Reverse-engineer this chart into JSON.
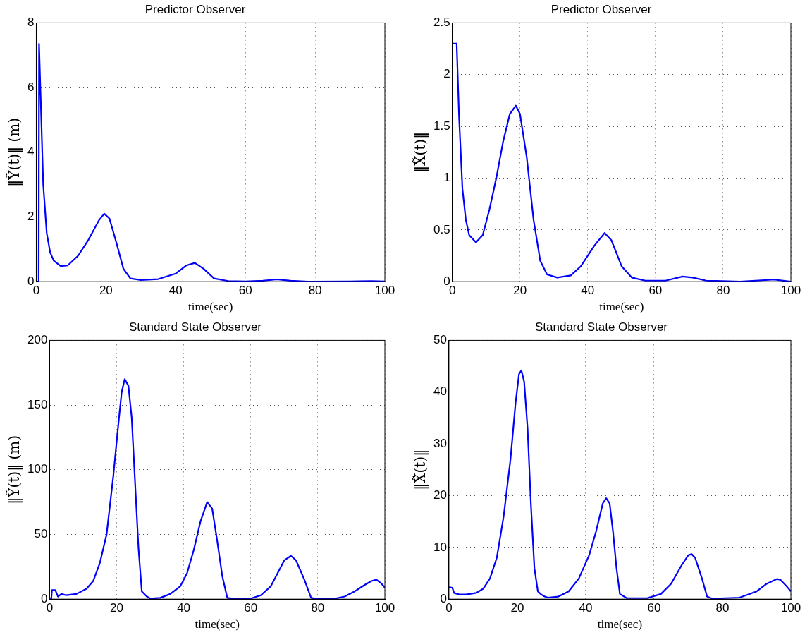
{
  "chart_data": [
    {
      "type": "line",
      "title": "Predictor Observer",
      "xlabel": "time(sec)",
      "ylabel": "‖Ỹ(t)‖ (m)",
      "xlim": [
        0,
        100
      ],
      "xticks": [
        0,
        20,
        40,
        60,
        80,
        100
      ],
      "ylim": [
        0,
        8
      ],
      "yticks": [
        0,
        2,
        4,
        6,
        8
      ],
      "grid": true,
      "marker": "none",
      "line_style": "solid",
      "series": [
        {
          "color": "#0000ff",
          "x": [
            0,
            0.7,
            0.8,
            2,
            3,
            4,
            5,
            7,
            9,
            12,
            15,
            18,
            19.5,
            21,
            23,
            25,
            27,
            30,
            35,
            40,
            43,
            45.5,
            48,
            51,
            55,
            60,
            65,
            69,
            73,
            78,
            90,
            96,
            100
          ],
          "values": [
            0,
            0,
            7.35,
            3,
            1.5,
            0.9,
            0.65,
            0.48,
            0.5,
            0.8,
            1.3,
            1.9,
            2.1,
            1.95,
            1.2,
            0.4,
            0.1,
            0.05,
            0.08,
            0.25,
            0.5,
            0.58,
            0.4,
            0.1,
            0.02,
            0.01,
            0.03,
            0.07,
            0.03,
            0,
            0.01,
            0.02,
            0.01
          ]
        }
      ]
    },
    {
      "type": "line",
      "title": "Predictor Observer",
      "xlabel": "time(sec)",
      "ylabel": "‖X̃(t)‖",
      "xlim": [
        0,
        100
      ],
      "xticks": [
        0,
        20,
        40,
        60,
        80,
        100
      ],
      "ylim": [
        0,
        2.5
      ],
      "yticks": [
        0,
        0.5,
        1,
        1.5,
        2,
        2.5
      ],
      "grid": true,
      "marker": "none",
      "line_style": "solid",
      "series": [
        {
          "color": "#0000ff",
          "x": [
            0,
            1.3,
            2,
            3,
            4,
            5,
            7,
            9,
            11,
            13,
            15,
            17,
            18.8,
            20,
            22,
            24,
            26,
            28,
            31,
            35,
            38,
            42,
            45,
            47,
            50,
            53,
            57,
            63,
            68,
            71,
            75,
            85,
            95,
            100
          ],
          "values": [
            2.3,
            2.3,
            1.6,
            0.9,
            0.6,
            0.45,
            0.38,
            0.45,
            0.7,
            1.0,
            1.35,
            1.62,
            1.7,
            1.62,
            1.2,
            0.6,
            0.2,
            0.07,
            0.04,
            0.06,
            0.15,
            0.35,
            0.47,
            0.4,
            0.15,
            0.04,
            0.01,
            0.01,
            0.05,
            0.04,
            0.01,
            0,
            0.02,
            0
          ]
        }
      ]
    },
    {
      "type": "line",
      "title": "Standard State Observer",
      "xlabel": "time(sec)",
      "ylabel": "‖Ỹ(t)‖ (m)",
      "xlim": [
        0,
        100
      ],
      "xticks": [
        0,
        20,
        40,
        60,
        80,
        100
      ],
      "ylim": [
        0,
        200
      ],
      "yticks": [
        0,
        50,
        100,
        150,
        200
      ],
      "grid": true,
      "marker": "none",
      "line_style": "solid",
      "series": [
        {
          "color": "#0000ff",
          "x": [
            0,
            0.5,
            0.7,
            1.7,
            2.5,
            3.5,
            5,
            8,
            11,
            13,
            15,
            17,
            19,
            20.5,
            21.5,
            22.4,
            23.5,
            24.5,
            25.5,
            26.5,
            27.5,
            29,
            30,
            33,
            36,
            39,
            41,
            43,
            45,
            47,
            48.5,
            50,
            51.5,
            53,
            56,
            60,
            63,
            66,
            68,
            70,
            72,
            73.5,
            76,
            78,
            80,
            85,
            88,
            91,
            94,
            96,
            97.5,
            99,
            100
          ],
          "values": [
            0,
            0,
            7,
            7,
            2,
            4,
            3,
            4,
            8,
            14,
            28,
            50,
            95,
            135,
            160,
            170,
            165,
            140,
            90,
            40,
            6,
            2,
            0.5,
            1,
            4,
            10,
            20,
            38,
            60,
            75,
            70,
            45,
            18,
            1,
            0,
            0.5,
            3,
            10,
            20,
            30,
            33.5,
            30,
            15,
            1,
            0,
            0.3,
            2,
            6,
            11,
            14,
            15,
            12,
            9
          ]
        }
      ]
    },
    {
      "type": "line",
      "title": "Standard State Observer",
      "xlabel": "time(sec)",
      "ylabel": "‖X̃(t)‖",
      "xlim": [
        0,
        100
      ],
      "xticks": [
        0,
        20,
        40,
        60,
        80,
        100
      ],
      "ylim": [
        0,
        50
      ],
      "yticks": [
        0,
        10,
        20,
        30,
        40,
        50
      ],
      "grid": true,
      "marker": "none",
      "line_style": "solid",
      "series": [
        {
          "color": "#0000ff",
          "x": [
            0,
            1,
            1.5,
            3,
            5,
            8,
            10,
            12,
            14,
            16,
            18,
            19.5,
            20.5,
            21.2,
            22,
            23,
            24,
            25,
            26,
            27,
            28,
            29,
            32,
            35,
            38,
            41,
            43,
            45,
            46,
            47,
            48,
            49,
            50,
            52,
            58,
            62,
            65,
            68,
            70,
            71,
            72,
            74,
            75.5,
            77,
            85,
            90,
            93,
            96,
            97,
            99,
            100
          ],
          "values": [
            2.3,
            2.2,
            1.2,
            0.9,
            0.9,
            1.2,
            2,
            4,
            8,
            16,
            27,
            38,
            43.5,
            44.2,
            42,
            33,
            18,
            6,
            1.5,
            0.9,
            0.5,
            0.3,
            0.5,
            1.5,
            4,
            8.5,
            13,
            18.5,
            19.5,
            18.5,
            13,
            6,
            1,
            0.2,
            0.2,
            1,
            3,
            6.5,
            8.5,
            8.7,
            8,
            4,
            0.5,
            0.1,
            0.3,
            1.5,
            3,
            3.9,
            3.7,
            2.3,
            1.5
          ]
        }
      ]
    }
  ]
}
